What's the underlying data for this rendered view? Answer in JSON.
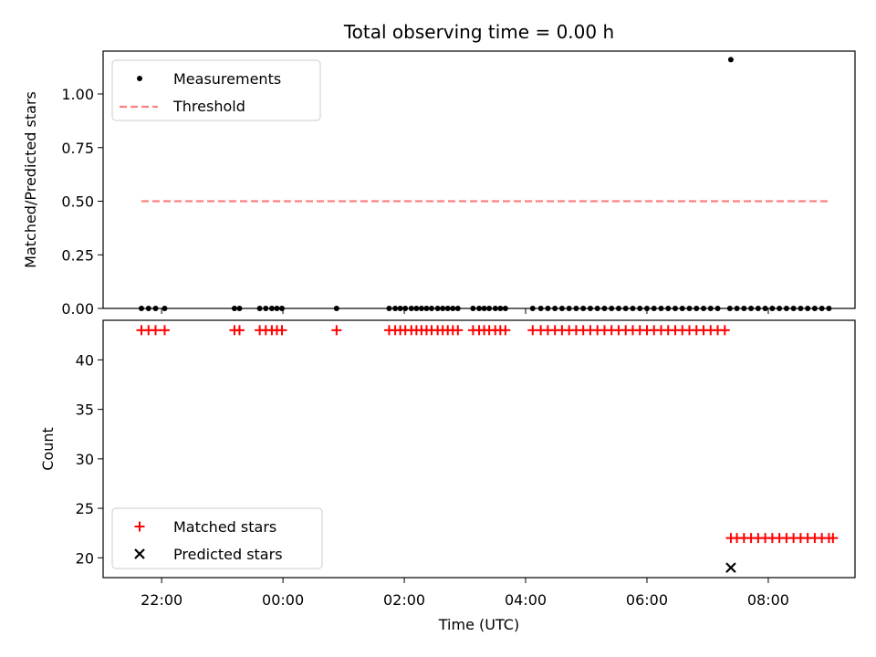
{
  "chart_data": [
    {
      "type": "scatter",
      "title": "Total observing time = 0.00 h",
      "xlabel": "",
      "ylabel": "Matched/Predicted stars",
      "ylim": [
        0,
        1.2
      ],
      "yticks": [
        "0.00",
        "0.25",
        "0.50",
        "0.75",
        "1.00"
      ],
      "xticks": [
        "22:00",
        "00:00",
        "02:00",
        "04:00",
        "06:00",
        "08:00"
      ],
      "legend": {
        "position": "top-left",
        "entries": [
          "Measurements",
          "Threshold"
        ]
      },
      "series": [
        {
          "name": "Measurements",
          "color": "#000000",
          "marker": "dot",
          "x": [
            "21:40",
            "21:47",
            "21:54",
            "22:03",
            "23:12",
            "23:17",
            "23:37",
            "23:43",
            "23:49",
            "23:54",
            "23:59",
            "00:53",
            "01:45",
            "01:51",
            "01:56",
            "02:01",
            "02:07",
            "02:12",
            "02:17",
            "02:22",
            "02:27",
            "02:33",
            "02:38",
            "02:43",
            "02:48",
            "02:53",
            "03:08",
            "03:14",
            "03:19",
            "03:24",
            "03:30",
            "03:35",
            "03:40",
            "04:07",
            "04:15",
            "04:22",
            "04:29",
            "04:36",
            "04:43",
            "04:50",
            "04:57",
            "05:04",
            "05:11",
            "05:18",
            "05:25",
            "05:32",
            "05:39",
            "05:46",
            "05:53",
            "06:00",
            "06:07",
            "06:14",
            "06:21",
            "06:28",
            "06:35",
            "06:42",
            "06:49",
            "06:56",
            "07:03",
            "07:10",
            "07:22",
            "07:29",
            "07:36",
            "07:43",
            "07:50",
            "07:57",
            "08:04",
            "08:11",
            "08:18",
            "08:25",
            "08:32",
            "08:39",
            "08:46",
            "08:53",
            "09:00"
          ],
          "y": [
            0,
            0,
            0,
            0,
            0,
            0,
            0,
            0,
            0,
            0,
            0,
            0,
            0,
            0,
            0,
            0,
            0,
            0,
            0,
            0,
            0,
            0,
            0,
            0,
            0,
            0,
            0,
            0,
            0,
            0,
            0,
            0,
            0,
            0,
            0,
            0,
            0,
            0,
            0,
            0,
            0,
            0,
            0,
            0,
            0,
            0,
            0,
            0,
            0,
            0,
            0,
            0,
            0,
            0,
            0,
            0,
            0,
            0,
            0,
            0,
            0,
            0,
            0,
            0,
            0,
            0,
            0,
            0,
            0,
            0,
            0,
            0,
            0,
            0,
            0
          ]
        },
        {
          "name": "Measurements",
          "color": "#000000",
          "marker": "dot",
          "x": [
            "07:23"
          ],
          "y": [
            1.16
          ]
        },
        {
          "name": "Threshold",
          "color": "#ff8080",
          "style": "dashed",
          "x": [
            "21:40",
            "09:00"
          ],
          "y": [
            0.5,
            0.5
          ]
        }
      ]
    },
    {
      "type": "scatter",
      "title": "",
      "xlabel": "Time (UTC)",
      "ylabel": "Count",
      "ylim": [
        18,
        44
      ],
      "yticks": [
        "20",
        "25",
        "30",
        "35",
        "40"
      ],
      "xticks": [
        "22:00",
        "00:00",
        "02:00",
        "04:00",
        "06:00",
        "08:00"
      ],
      "legend": {
        "position": "bottom-left",
        "entries": [
          "Matched stars",
          "Predicted stars"
        ]
      },
      "series": [
        {
          "name": "Matched stars",
          "color": "#ff0000",
          "marker": "plus",
          "x": [
            "21:40",
            "21:47",
            "21:54",
            "22:03",
            "23:12",
            "23:17",
            "23:37",
            "23:43",
            "23:49",
            "23:54",
            "23:59",
            "00:53",
            "01:45",
            "01:51",
            "01:56",
            "02:01",
            "02:07",
            "02:12",
            "02:17",
            "02:22",
            "02:27",
            "02:33",
            "02:38",
            "02:43",
            "02:48",
            "02:53",
            "03:08",
            "03:14",
            "03:19",
            "03:24",
            "03:30",
            "03:35",
            "03:40",
            "04:07",
            "04:15",
            "04:22",
            "04:29",
            "04:36",
            "04:43",
            "04:50",
            "04:57",
            "05:04",
            "05:11",
            "05:18",
            "05:25",
            "05:32",
            "05:39",
            "05:46",
            "05:53",
            "06:00",
            "06:07",
            "06:14",
            "06:21",
            "06:28",
            "06:35",
            "06:42",
            "06:49",
            "06:56",
            "07:03",
            "07:10",
            "07:17"
          ],
          "y": [
            43,
            43,
            43,
            43,
            43,
            43,
            43,
            43,
            43,
            43,
            43,
            43,
            43,
            43,
            43,
            43,
            43,
            43,
            43,
            43,
            43,
            43,
            43,
            43,
            43,
            43,
            43,
            43,
            43,
            43,
            43,
            43,
            43,
            43,
            43,
            43,
            43,
            43,
            43,
            43,
            43,
            43,
            43,
            43,
            43,
            43,
            43,
            43,
            43,
            43,
            43,
            43,
            43,
            43,
            43,
            43,
            43,
            43,
            43,
            43,
            43
          ]
        },
        {
          "name": "Matched stars",
          "color": "#ff0000",
          "marker": "plus",
          "x": [
            "07:23",
            "07:29",
            "07:36",
            "07:43",
            "07:50",
            "07:57",
            "08:04",
            "08:11",
            "08:18",
            "08:25",
            "08:32",
            "08:39",
            "08:46",
            "08:53",
            "09:00",
            "09:04"
          ],
          "y": [
            22,
            22,
            22,
            22,
            22,
            22,
            22,
            22,
            22,
            22,
            22,
            22,
            22,
            22,
            22,
            22
          ]
        },
        {
          "name": "Predicted stars",
          "color": "#000000",
          "marker": "x",
          "x": [
            "07:23"
          ],
          "y": [
            19
          ]
        }
      ]
    }
  ]
}
